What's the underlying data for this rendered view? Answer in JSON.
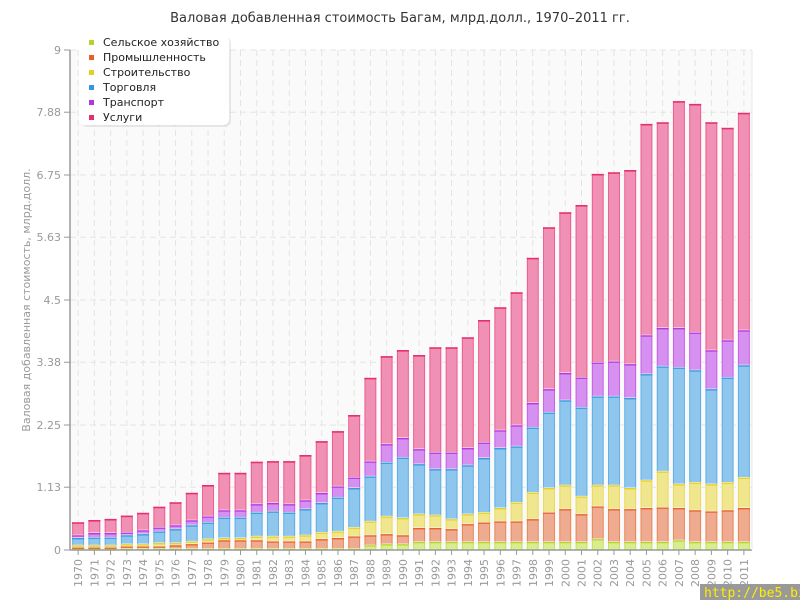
{
  "chart_data": {
    "type": "bar",
    "stacked": true,
    "title": "Валовая добавленная стоимость Багам, млрд.долл., 1970–2011 гг.",
    "xlabel": "",
    "ylabel": "Валовая добавленная стоимость, млрд.долл.",
    "ylim": [
      0,
      9
    ],
    "yticks": [
      "0",
      "1.13",
      "2.25",
      "3.38",
      "4.5",
      "5.63",
      "6.75",
      "7.88",
      "9"
    ],
    "grid": true,
    "legend_position": "top-left",
    "categories": [
      "1970",
      "1971",
      "1972",
      "1973",
      "1974",
      "1975",
      "1976",
      "1977",
      "1978",
      "1979",
      "1980",
      "1981",
      "1982",
      "1983",
      "1984",
      "1985",
      "1986",
      "1987",
      "1988",
      "1989",
      "1990",
      "1991",
      "1992",
      "1993",
      "1994",
      "1995",
      "1996",
      "1997",
      "1998",
      "1999",
      "2000",
      "2001",
      "2002",
      "2003",
      "2004",
      "2005",
      "2006",
      "2007",
      "2008",
      "2009",
      "2010",
      "2011"
    ],
    "series": [
      {
        "name": "Сельское хозяйство",
        "color": "#b4d62c",
        "fill": "#d9ec90",
        "values": [
          0.03,
          0.03,
          0.03,
          0.03,
          0.03,
          0.03,
          0.03,
          0.03,
          0.03,
          0.03,
          0.03,
          0.03,
          0.03,
          0.03,
          0.03,
          0.03,
          0.03,
          0.03,
          0.09,
          0.11,
          0.11,
          0.15,
          0.15,
          0.15,
          0.15,
          0.15,
          0.15,
          0.15,
          0.15,
          0.15,
          0.15,
          0.15,
          0.2,
          0.15,
          0.15,
          0.15,
          0.15,
          0.18,
          0.15,
          0.15,
          0.15,
          0.15
        ]
      },
      {
        "name": "Промышленность",
        "color": "#e6602a",
        "fill": "#eeab8f",
        "values": [
          0.02,
          0.02,
          0.02,
          0.04,
          0.04,
          0.04,
          0.06,
          0.08,
          0.11,
          0.15,
          0.15,
          0.15,
          0.13,
          0.13,
          0.13,
          0.17,
          0.19,
          0.22,
          0.18,
          0.18,
          0.16,
          0.25,
          0.25,
          0.23,
          0.32,
          0.35,
          0.37,
          0.37,
          0.41,
          0.53,
          0.59,
          0.5,
          0.59,
          0.59,
          0.59,
          0.61,
          0.62,
          0.58,
          0.57,
          0.55,
          0.57,
          0.61
        ]
      },
      {
        "name": "Строительство",
        "color": "#e2cf2a",
        "fill": "#f0e68e",
        "values": [
          0.04,
          0.04,
          0.04,
          0.04,
          0.04,
          0.06,
          0.04,
          0.05,
          0.06,
          0.04,
          0.04,
          0.07,
          0.09,
          0.09,
          0.11,
          0.12,
          0.12,
          0.16,
          0.25,
          0.32,
          0.31,
          0.25,
          0.23,
          0.18,
          0.18,
          0.18,
          0.24,
          0.34,
          0.48,
          0.44,
          0.43,
          0.32,
          0.38,
          0.43,
          0.38,
          0.5,
          0.65,
          0.43,
          0.5,
          0.49,
          0.5,
          0.55
        ]
      },
      {
        "name": "Торговля",
        "color": "#3498db",
        "fill": "#8fc6ee",
        "values": [
          0.13,
          0.14,
          0.14,
          0.16,
          0.18,
          0.21,
          0.25,
          0.29,
          0.3,
          0.37,
          0.37,
          0.43,
          0.45,
          0.43,
          0.47,
          0.53,
          0.61,
          0.71,
          0.81,
          0.97,
          1.09,
          0.9,
          0.83,
          0.9,
          0.88,
          0.98,
          1.08,
          1.01,
          1.17,
          1.36,
          1.53,
          1.6,
          1.6,
          1.6,
          1.62,
          1.91,
          1.89,
          2.1,
          2.02,
          1.71,
          1.89,
          2.02
        ]
      },
      {
        "name": "Транспорт",
        "color": "#b235e0",
        "fill": "#d590f0",
        "values": [
          0.05,
          0.08,
          0.08,
          0.05,
          0.07,
          0.07,
          0.07,
          0.09,
          0.11,
          0.13,
          0.13,
          0.15,
          0.15,
          0.15,
          0.16,
          0.18,
          0.2,
          0.19,
          0.27,
          0.33,
          0.35,
          0.27,
          0.3,
          0.3,
          0.31,
          0.28,
          0.32,
          0.38,
          0.44,
          0.42,
          0.49,
          0.54,
          0.61,
          0.63,
          0.61,
          0.7,
          0.69,
          0.71,
          0.68,
          0.7,
          0.67,
          0.63
        ]
      },
      {
        "name": "Услуги",
        "color": "#e6306e",
        "fill": "#f090b5",
        "values": [
          0.23,
          0.23,
          0.25,
          0.3,
          0.31,
          0.37,
          0.41,
          0.49,
          0.56,
          0.67,
          0.67,
          0.76,
          0.75,
          0.77,
          0.81,
          0.93,
          0.99,
          1.12,
          1.5,
          1.58,
          1.58,
          1.69,
          1.89,
          1.89,
          1.99,
          2.2,
          2.21,
          2.39,
          2.61,
          2.91,
          2.89,
          3.1,
          3.39,
          3.4,
          3.49,
          3.8,
          3.7,
          4.08,
          4.11,
          4.1,
          3.82,
          3.91
        ]
      }
    ]
  },
  "watermark": "http://be5.biz/"
}
